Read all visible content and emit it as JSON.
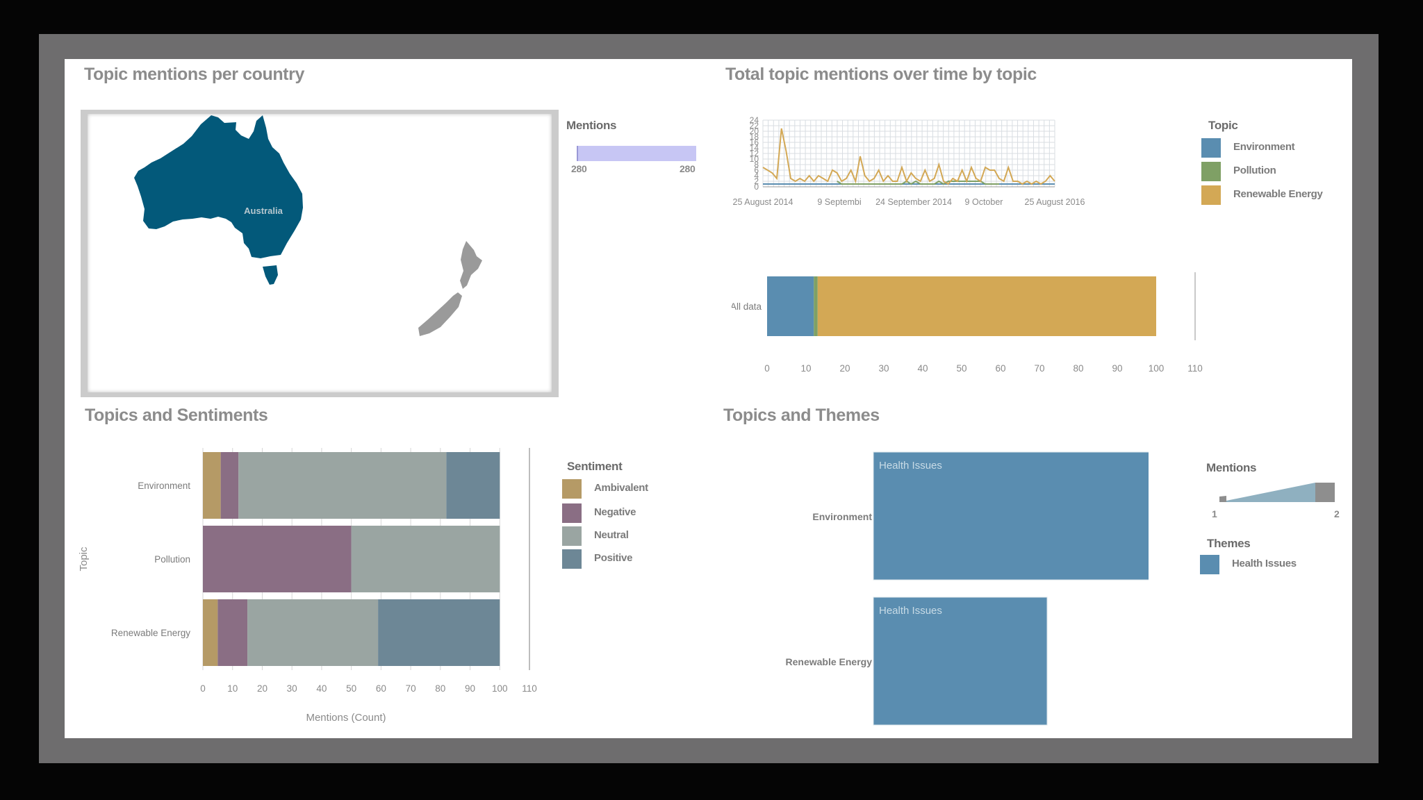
{
  "colors": {
    "environment": "#5a8db0",
    "pollution": "#7fa065",
    "renewable_energy": "#d3a855",
    "ambivalent": "#b59a66",
    "negative": "#8a6e84",
    "neutral": "#9aa5a2",
    "positive": "#6d8796",
    "health_issues": "#5a8db0",
    "map_country": "#03597a",
    "map_other": "#9a9a9a"
  },
  "map_panel": {
    "title": "Topic mentions per country",
    "country_label": "Australia",
    "legend_title": "Mentions",
    "legend_min": "280",
    "legend_max": "280"
  },
  "timeline_panel": {
    "title": "Total topic mentions over time by topic",
    "legend_title": "Topic",
    "legend_items": [
      "Environment",
      "Pollution",
      "Renewable Energy"
    ],
    "stacked_row_label": "All data"
  },
  "sentiment_panel": {
    "title": "Topics and Sentiments",
    "legend_title": "Sentiment",
    "legend_items": [
      "Ambivalent",
      "Negative",
      "Neutral",
      "Positive"
    ]
  },
  "themes_panel": {
    "title": "Topics and Themes",
    "legend_mentions_title": "Mentions",
    "legend_mentions_min": "1",
    "legend_mentions_max": "2",
    "legend_themes_title": "Themes",
    "legend_themes_item": "Health Issues"
  },
  "chart_data": [
    {
      "type": "line",
      "title": "Total topic mentions over time by topic",
      "x_ticks": [
        "25 August 2014",
        "9 Septembi",
        "24 September 2014",
        "9 October",
        "25 August 2016"
      ],
      "y_ticks": [
        0,
        2,
        4,
        6,
        8,
        10,
        12,
        14,
        16,
        18,
        20,
        22,
        24
      ],
      "ylim": [
        0,
        24
      ],
      "grid": true,
      "legend_position": "right",
      "series": [
        {
          "name": "Environment",
          "values": [
            1,
            1,
            1,
            1,
            1,
            1,
            1,
            1,
            1,
            1,
            1,
            1,
            1,
            1,
            1,
            1,
            1,
            1,
            1,
            1,
            1,
            1,
            1,
            1,
            1,
            1,
            1,
            1,
            1,
            1,
            1,
            1,
            1,
            1,
            1,
            1,
            1,
            1,
            1,
            1,
            1,
            1,
            1,
            1,
            1,
            1,
            1,
            1,
            1,
            1,
            1,
            1,
            1,
            1,
            1,
            1,
            1,
            1,
            1,
            1,
            1,
            1,
            1,
            1
          ]
        },
        {
          "name": "Pollution",
          "values": [
            null,
            null,
            null,
            null,
            null,
            null,
            null,
            null,
            null,
            null,
            null,
            null,
            null,
            null,
            null,
            null,
            2,
            1,
            1,
            1,
            1,
            1,
            1,
            1,
            1,
            1,
            1,
            1,
            1,
            1,
            1,
            2,
            1,
            2,
            1,
            1,
            1,
            1,
            2,
            1,
            2,
            2,
            2,
            2,
            2,
            2,
            2,
            2,
            1,
            1,
            1,
            1,
            null,
            null,
            null,
            null,
            null,
            null,
            null,
            null,
            null,
            null,
            null,
            null
          ]
        },
        {
          "name": "Renewable Energy",
          "values": [
            7,
            6,
            5,
            3,
            21,
            13,
            3,
            2,
            3,
            2,
            4,
            2,
            4,
            3,
            2,
            6,
            5,
            2,
            3,
            6,
            2,
            11,
            4,
            2,
            3,
            6,
            2,
            4,
            2,
            2,
            7,
            2,
            5,
            3,
            2,
            6,
            2,
            3,
            8,
            2,
            1,
            3,
            2,
            6,
            2,
            7,
            3,
            2,
            7,
            6,
            6,
            3,
            2,
            7,
            2,
            2,
            1,
            2,
            1,
            2,
            1,
            2,
            4,
            2
          ]
        }
      ]
    },
    {
      "type": "bar",
      "orientation": "horizontal",
      "stacked": true,
      "categories": [
        "All data"
      ],
      "xlim": [
        0,
        110
      ],
      "x_ticks": [
        0,
        10,
        20,
        30,
        40,
        50,
        60,
        70,
        80,
        90,
        100,
        110
      ],
      "series": [
        {
          "name": "Environment",
          "values": [
            12
          ]
        },
        {
          "name": "Pollution",
          "values": [
            1
          ]
        },
        {
          "name": "Renewable Energy",
          "values": [
            87
          ]
        }
      ]
    },
    {
      "type": "bar",
      "orientation": "horizontal",
      "stacked": true,
      "title": "Topics and Sentiments",
      "categories": [
        "Environment",
        "Pollution",
        "Renewable Energy"
      ],
      "xlabel": "Mentions (Count)",
      "ylabel": "Topic",
      "xlim": [
        0,
        110
      ],
      "x_ticks": [
        0,
        10,
        20,
        30,
        40,
        50,
        60,
        70,
        80,
        90,
        100,
        110
      ],
      "grid": true,
      "legend_position": "right",
      "series": [
        {
          "name": "Ambivalent",
          "values": [
            6,
            0,
            5
          ]
        },
        {
          "name": "Negative",
          "values": [
            6,
            50,
            10
          ]
        },
        {
          "name": "Neutral",
          "values": [
            70,
            50,
            44
          ]
        },
        {
          "name": "Positive",
          "values": [
            18,
            0,
            41
          ]
        }
      ]
    },
    {
      "type": "bar",
      "orientation": "horizontal",
      "title": "Topics and Themes",
      "categories": [
        "Environment",
        "Renewable Energy"
      ],
      "series": [
        {
          "name": "Health Issues",
          "values": [
            2,
            1
          ]
        }
      ],
      "bar_labels": [
        "Health Issues",
        "Health Issues"
      ],
      "legend_position": "right"
    }
  ]
}
